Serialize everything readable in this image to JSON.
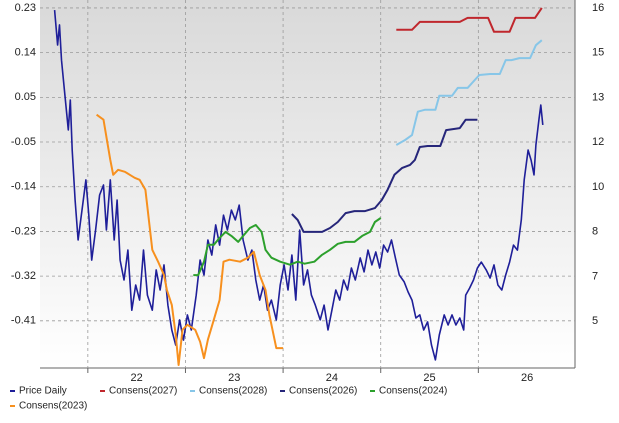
{
  "chart_data": {
    "type": "line",
    "xlim": [
      21.51,
      26.99
    ],
    "xticks": [
      22,
      23,
      24,
      25,
      26
    ],
    "ylim": [
      -0.5,
      0.241
    ],
    "yticks": [
      {
        "value": 0.225,
        "label": "0.23"
      },
      {
        "value": 0.135,
        "label": "0.14"
      },
      {
        "value": 0.045,
        "label": "0.05"
      },
      {
        "value": -0.045,
        "label": "-0.05"
      },
      {
        "value": -0.135,
        "label": "-0.14"
      },
      {
        "value": -0.225,
        "label": "-0.23"
      },
      {
        "value": -0.315,
        "label": "-0.32"
      },
      {
        "value": -0.405,
        "label": "-0.41"
      }
    ],
    "y2lim": [
      3.52,
      16.69
    ],
    "y2ticks": [
      {
        "value": 16.4,
        "label": "16"
      },
      {
        "value": 14.8,
        "label": "15"
      },
      {
        "value": 13.2,
        "label": "13"
      },
      {
        "value": 11.6,
        "label": "12"
      },
      {
        "value": 10.0,
        "label": "10"
      },
      {
        "value": 8.4,
        "label": "8"
      },
      {
        "value": 6.8,
        "label": "7"
      },
      {
        "value": 5.2,
        "label": "5"
      }
    ],
    "grid": true,
    "legend": "bottom",
    "series": [
      {
        "name": "Price Daily",
        "color": "#1f1f99",
        "axis": "y2",
        "x": [
          21.66,
          21.69,
          21.71,
          21.73,
          21.76,
          21.8,
          21.82,
          21.84,
          21.87,
          21.9,
          21.94,
          21.98,
          22.01,
          22.04,
          22.08,
          22.12,
          22.16,
          22.19,
          22.23,
          22.27,
          22.3,
          22.33,
          22.37,
          22.41,
          22.45,
          22.49,
          22.53,
          22.57,
          22.61,
          22.66,
          22.7,
          22.74,
          22.78,
          22.82,
          22.86,
          22.9,
          22.94,
          22.98,
          23.02,
          23.06,
          23.11,
          23.15,
          23.19,
          23.23,
          23.27,
          23.31,
          23.35,
          23.39,
          23.43,
          23.47,
          23.51,
          23.55,
          23.59,
          23.64,
          23.68,
          23.72,
          23.76,
          23.8,
          23.84,
          23.88,
          23.93,
          23.97,
          24.01,
          24.05,
          24.09,
          24.13,
          24.17,
          24.21,
          24.25,
          24.29,
          24.33,
          24.38,
          24.42,
          24.46,
          24.5,
          24.54,
          24.58,
          24.62,
          24.66,
          24.7,
          24.74,
          24.79,
          24.83,
          24.87,
          24.91,
          24.95,
          24.99,
          25.03,
          25.07,
          25.11,
          25.15,
          25.19,
          25.24,
          25.28,
          25.32,
          25.36,
          25.4,
          25.44,
          25.48,
          25.52,
          25.56,
          25.6,
          25.65,
          25.69,
          25.73,
          25.77,
          25.81,
          25.85,
          25.87,
          25.91,
          25.95,
          25.99,
          26.03,
          26.08,
          26.12,
          26.16,
          26.2,
          26.24,
          26.28,
          26.32,
          26.36,
          26.4,
          26.44,
          26.47,
          26.51,
          26.54,
          26.57,
          26.59,
          26.62,
          26.64,
          26.66
        ],
        "values": [
          16.33,
          15.08,
          15.8,
          14.54,
          13.47,
          12.04,
          13.11,
          11.32,
          9.53,
          8.1,
          9.17,
          10.25,
          8.99,
          7.38,
          8.46,
          9.71,
          10.07,
          8.46,
          10.25,
          8.1,
          9.53,
          7.38,
          6.67,
          7.74,
          5.59,
          6.49,
          5.95,
          7.74,
          6.13,
          5.59,
          7.03,
          6.31,
          7.21,
          5.77,
          4.88,
          4.34,
          5.24,
          4.52,
          5.42,
          4.88,
          6.13,
          7.38,
          6.85,
          8.1,
          7.56,
          8.64,
          7.92,
          8.99,
          8.46,
          9.17,
          8.82,
          9.35,
          8.1,
          7.38,
          7.74,
          6.67,
          5.95,
          6.49,
          5.59,
          5.95,
          5.24,
          6.49,
          7.21,
          6.31,
          7.56,
          5.95,
          8.46,
          6.49,
          7.03,
          6.13,
          5.77,
          5.24,
          5.77,
          4.88,
          5.59,
          6.31,
          5.95,
          6.67,
          6.31,
          7.1,
          6.67,
          7.46,
          6.96,
          7.74,
          7.21,
          7.67,
          7.1,
          7.92,
          7.67,
          8.1,
          7.46,
          6.85,
          6.6,
          6.24,
          5.95,
          5.31,
          5.42,
          4.88,
          5.17,
          4.34,
          3.81,
          4.7,
          5.42,
          5.06,
          5.42,
          5.06,
          5.31,
          4.88,
          6.13,
          6.38,
          6.67,
          7.1,
          7.31,
          7.03,
          6.74,
          7.21,
          6.49,
          6.31,
          6.85,
          7.31,
          7.92,
          7.74,
          8.82,
          10.25,
          11.32,
          10.96,
          10.43,
          11.5,
          12.4,
          12.93,
          12.22
        ]
      },
      {
        "name": "Consens(2027)",
        "color": "#c0272d",
        "x": [
          25.16,
          25.32,
          25.4,
          25.6,
          25.81,
          25.89,
          26.03,
          26.1,
          26.16,
          26.32,
          26.38,
          26.58,
          26.65
        ],
        "values": [
          0.181,
          0.181,
          0.197,
          0.197,
          0.197,
          0.205,
          0.205,
          0.205,
          0.177,
          0.177,
          0.205,
          0.205,
          0.225
        ]
      },
      {
        "name": "Consens(2028)",
        "color": "#87c6e8",
        "x": [
          25.16,
          25.25,
          25.32,
          25.38,
          25.45,
          25.56,
          25.6,
          25.73,
          25.79,
          25.89,
          26.01,
          26.12,
          26.22,
          26.28,
          26.34,
          26.42,
          26.53,
          26.59,
          26.65
        ],
        "values": [
          -0.051,
          -0.041,
          -0.031,
          0.016,
          0.02,
          0.02,
          0.048,
          0.048,
          0.064,
          0.064,
          0.09,
          0.092,
          0.092,
          0.12,
          0.12,
          0.124,
          0.124,
          0.15,
          0.16
        ]
      },
      {
        "name": "Consens(2026)",
        "color": "#26267a",
        "x": [
          24.09,
          24.15,
          24.21,
          24.29,
          24.4,
          24.48,
          24.56,
          24.64,
          24.73,
          24.84,
          24.94,
          25.01,
          25.07,
          25.14,
          25.22,
          25.3,
          25.35,
          25.4,
          25.48,
          25.61,
          25.67,
          25.81,
          25.87,
          25.99
        ],
        "values": [
          -0.19,
          -0.202,
          -0.226,
          -0.226,
          -0.226,
          -0.218,
          -0.206,
          -0.188,
          -0.184,
          -0.184,
          -0.178,
          -0.162,
          -0.141,
          -0.111,
          -0.097,
          -0.091,
          -0.081,
          -0.055,
          -0.053,
          -0.053,
          -0.021,
          -0.017,
          0.0,
          0.0
        ]
      },
      {
        "name": "Consens(2024)",
        "color": "#2ca02c",
        "x": [
          23.08,
          23.13,
          23.19,
          23.23,
          23.29,
          23.35,
          23.41,
          23.47,
          23.54,
          23.6,
          23.66,
          23.72,
          23.78,
          23.82,
          23.88,
          23.97,
          24.07,
          24.15,
          24.22,
          24.32,
          24.4,
          24.48,
          24.56,
          24.64,
          24.73,
          24.81,
          24.89,
          24.94,
          25.0
        ],
        "values": [
          -0.313,
          -0.313,
          -0.286,
          -0.252,
          -0.252,
          -0.238,
          -0.226,
          -0.234,
          -0.246,
          -0.232,
          -0.218,
          -0.212,
          -0.226,
          -0.262,
          -0.278,
          -0.286,
          -0.292,
          -0.286,
          -0.29,
          -0.286,
          -0.272,
          -0.262,
          -0.25,
          -0.246,
          -0.246,
          -0.234,
          -0.226,
          -0.206,
          -0.198
        ]
      },
      {
        "name": "Consens(2023)",
        "color": "#f7901e",
        "x": [
          22.09,
          22.16,
          22.23,
          22.26,
          22.31,
          22.38,
          22.43,
          22.48,
          22.53,
          22.59,
          22.66,
          22.72,
          22.78,
          22.81,
          22.86,
          22.9,
          22.93,
          22.97,
          23.02,
          23.1,
          23.15,
          23.19,
          23.23,
          23.29,
          23.35,
          23.39,
          23.45,
          23.56,
          23.64,
          23.7,
          23.76,
          23.82,
          23.86,
          23.93,
          24.0
        ],
        "values": [
          0.01,
          0.0,
          -0.081,
          -0.111,
          -0.101,
          -0.105,
          -0.111,
          -0.117,
          -0.121,
          -0.141,
          -0.262,
          -0.286,
          -0.313,
          -0.343,
          -0.373,
          -0.433,
          -0.494,
          -0.423,
          -0.413,
          -0.423,
          -0.447,
          -0.48,
          -0.443,
          -0.403,
          -0.363,
          -0.286,
          -0.282,
          -0.286,
          -0.278,
          -0.266,
          -0.313,
          -0.343,
          -0.393,
          -0.46,
          -0.46
        ]
      }
    ]
  }
}
